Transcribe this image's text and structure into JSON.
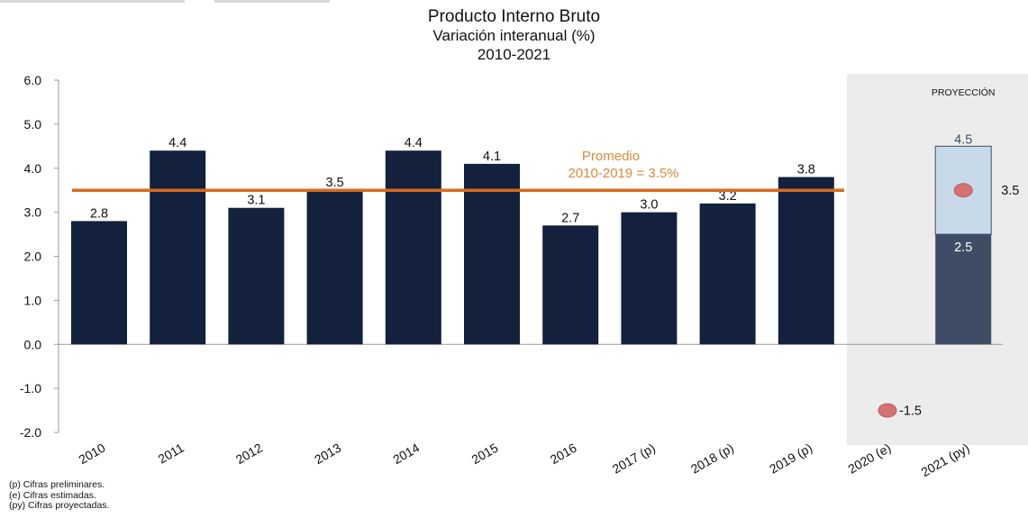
{
  "chart_data": {
    "type": "bar",
    "title": "Producto Interno Bruto",
    "subtitle": "Variación interanual (%)",
    "period": "2010-2021",
    "categories": [
      "2010",
      "2011",
      "2012",
      "2013",
      "2014",
      "2015",
      "2016",
      "2017 (p)",
      "2018 (p)",
      "2019 (p)",
      "2020 (e)",
      "2021 (py)"
    ],
    "series": [
      {
        "values": [
          2.8,
          4.4,
          3.1,
          3.5,
          4.4,
          4.1,
          2.7,
          3.0,
          3.2,
          3.8,
          null,
          null
        ],
        "labels": [
          "2.8",
          "4.4",
          "3.1",
          "3.5",
          "4.4",
          "4.1",
          "2.7",
          "3.0",
          "3.2",
          "3.8",
          "",
          ""
        ]
      }
    ],
    "projection_range": {
      "category": "2021 (py)",
      "low": 2.5,
      "high": 4.5,
      "point": 3.5,
      "low_label": "2.5",
      "high_label": "4.5",
      "point_label": "3.5"
    },
    "estimate_point": {
      "category": "2020 (e)",
      "value": -1.5,
      "label": "-1.5"
    },
    "average_line": {
      "value": 3.5,
      "label_line1": "Promedio",
      "label_line2": "2010-2019 = 3.5%"
    },
    "projection_panel_label": "PROYECCIÓN",
    "ylim": [
      -2.0,
      6.0
    ],
    "yticks": [
      "6.0",
      "5.0",
      "4.0",
      "3.0",
      "2.0",
      "1.0",
      "0.0",
      "-1.0",
      "-2.0"
    ],
    "xlabel": "",
    "ylabel": "",
    "grid": false
  },
  "notes": [
    "(p) Cifras preliminares.",
    "(e) Cifras estimadas.",
    "(py) Cifras proyectadas."
  ],
  "colors": {
    "bar": "#13213d",
    "range_low": "#3e4d65",
    "range_high": "#c8d9ea",
    "average_line": "#d86a1c",
    "average_text": "#d98a3a",
    "point": "#d47272",
    "panel": "#ececec",
    "text": "#111111"
  }
}
